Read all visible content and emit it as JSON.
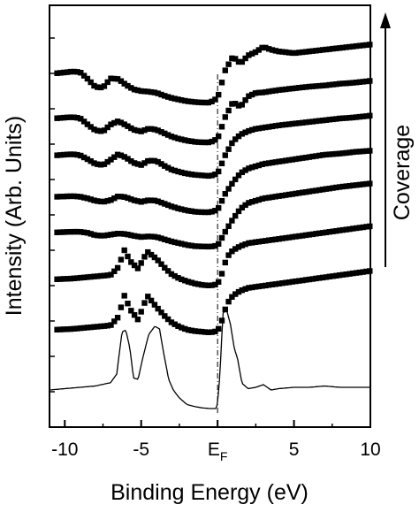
{
  "chart_data": {
    "type": "line",
    "title": "",
    "xlabel": "Binding Energy (eV)",
    "ylabel": "Intensity (Arb. Units)",
    "xlim": [
      -11,
      10
    ],
    "x_ticks": [
      -10,
      -5,
      0,
      5,
      10
    ],
    "x_tick_labels": [
      "-10",
      "-5",
      "E_F",
      "5",
      "10"
    ],
    "ef_main": "E",
    "ef_sub": "F",
    "fermi_level_x": 0,
    "y_tick_labels": [],
    "annotation": {
      "text": "Coverage",
      "arrow": "up"
    },
    "series": [
      {
        "style": "line",
        "x": [
          -11,
          -10,
          -9,
          -8,
          -7,
          -6.6,
          -6.25,
          -6.0,
          -5.75,
          -5.5,
          -5.2,
          -4.9,
          -4.5,
          -4.1,
          -3.8,
          -3.5,
          -3.2,
          -2.9,
          -2.5,
          -2.0,
          -1.5,
          -1.0,
          -0.5,
          -0.1,
          0.0,
          0.15,
          0.35,
          0.6,
          0.85,
          1.1,
          1.3,
          1.6,
          2.0,
          2.5,
          3.0,
          3.5,
          4.0,
          5.0,
          6.0,
          7.0,
          8.0,
          9.0,
          10.0
        ],
        "y": [
          1.4,
          1.5,
          1.6,
          1.7,
          1.95,
          2.6,
          5.8,
          5.9,
          4.6,
          2.3,
          2.2,
          3.8,
          5.6,
          6.2,
          6.0,
          4.0,
          2.2,
          1.4,
          0.8,
          0.3,
          0.15,
          0.05,
          0.0,
          0.0,
          0.4,
          2.5,
          7.2,
          7.4,
          6.3,
          4.5,
          3.8,
          1.9,
          1.5,
          1.6,
          1.8,
          1.4,
          1.5,
          1.6,
          1.6,
          1.7,
          1.6,
          1.6,
          1.6
        ]
      },
      {
        "style": "squares",
        "x": [
          -10.5,
          -9.5,
          -9,
          -8.5,
          -8,
          -7.5,
          -7,
          -6.5,
          -6.1,
          -5.7,
          -5.2,
          -4.6,
          -4.0,
          -3.5,
          -3.0,
          -2.5,
          -2.0,
          -1.5,
          -1.0,
          -0.5,
          0.0,
          0.3,
          0.6,
          1.0,
          1.5,
          2.0,
          3.0,
          4.0,
          5.0,
          6.0,
          7.0,
          8.0,
          9.0,
          10.0
        ],
        "y": [
          0.2,
          0.25,
          0.3,
          0.35,
          0.4,
          0.45,
          0.5,
          1.1,
          2.6,
          1.6,
          0.9,
          2.6,
          1.8,
          1.2,
          0.7,
          0.4,
          0.2,
          0.1,
          0.05,
          0.0,
          0.1,
          0.9,
          2.0,
          2.6,
          2.95,
          3.15,
          3.3,
          3.45,
          3.6,
          3.75,
          3.9,
          4.05,
          4.2,
          4.35
        ]
      },
      {
        "style": "squares",
        "x": [
          -10.5,
          -9.5,
          -9,
          -8.5,
          -8,
          -7.5,
          -7,
          -6.5,
          -6.1,
          -5.7,
          -5.2,
          -4.6,
          -4.0,
          -3.5,
          -3.0,
          -2.5,
          -2.0,
          -1.5,
          -1.0,
          -0.5,
          0.0,
          0.3,
          0.6,
          1.0,
          1.5,
          2.0,
          3.0,
          4.0,
          5.0,
          6.0,
          7.0,
          8.0,
          9.0,
          10.0
        ],
        "y": [
          0.45,
          0.5,
          0.55,
          0.6,
          0.65,
          0.7,
          0.75,
          1.3,
          2.5,
          1.7,
          1.2,
          2.4,
          1.9,
          1.3,
          0.8,
          0.5,
          0.3,
          0.15,
          0.05,
          0.0,
          0.1,
          0.9,
          2.0,
          2.5,
          2.8,
          3.0,
          3.15,
          3.3,
          3.45,
          3.6,
          3.75,
          3.9,
          4.05,
          4.2
        ]
      },
      {
        "style": "squares",
        "x": [
          -10.5,
          -9.5,
          -9,
          -8.5,
          -8,
          -7.5,
          -7,
          -6.5,
          -6,
          -5.5,
          -5,
          -4.5,
          -4,
          -3.5,
          -3,
          -2.5,
          -2,
          -1.5,
          -1,
          -0.5,
          0.0,
          0.5,
          1.0,
          1.5,
          2.0,
          3.0,
          4.0,
          5.0,
          6.0,
          7.0,
          8.0,
          9.0,
          10.0
        ],
        "y": [
          1.25,
          1.3,
          1.3,
          1.2,
          1.0,
          0.95,
          1.05,
          1.15,
          1.1,
          0.95,
          0.85,
          0.9,
          0.85,
          0.65,
          0.45,
          0.3,
          0.15,
          0.05,
          0.02,
          0.0,
          0.1,
          1.3,
          2.4,
          3.3,
          3.8,
          4.2,
          4.4,
          4.6,
          4.8,
          5.0,
          5.2,
          5.35,
          5.5
        ]
      },
      {
        "style": "squares",
        "x": [
          -10.5,
          -9.5,
          -9,
          -8.5,
          -8,
          -7.5,
          -7,
          -6.5,
          -6,
          -5.5,
          -5,
          -4.5,
          -4,
          -3.5,
          -3,
          -2.5,
          -2,
          -1.5,
          -1,
          -0.5,
          0.0,
          0.5,
          1.0,
          1.5,
          2.0,
          3.0,
          4.0,
          5.0,
          6.0,
          7.0,
          8.0,
          9.0,
          10.0
        ],
        "y": [
          1.35,
          1.4,
          1.35,
          1.2,
          1.0,
          0.9,
          1.05,
          1.4,
          1.3,
          1.05,
          0.9,
          1.05,
          1.0,
          0.75,
          0.5,
          0.3,
          0.15,
          0.05,
          0.0,
          0.0,
          0.2,
          1.6,
          2.6,
          3.4,
          3.8,
          4.2,
          4.4,
          4.6,
          4.8,
          5.0,
          5.1,
          5.25,
          5.35
        ]
      },
      {
        "style": "squares",
        "x": [
          -10.5,
          -9.5,
          -9,
          -8.5,
          -8,
          -7.5,
          -7,
          -6.5,
          -6,
          -5.5,
          -5,
          -4.5,
          -4,
          -3.5,
          -3,
          -2.5,
          -2,
          -1.5,
          -1,
          -0.5,
          0.0,
          0.5,
          1.0,
          1.5,
          2.0,
          2.5,
          3.0,
          4.0,
          5.0,
          6.0,
          7.0,
          8.0,
          9.0,
          10.0
        ],
        "y": [
          1.8,
          1.9,
          1.8,
          1.45,
          1.05,
          0.95,
          1.4,
          1.9,
          1.6,
          1.15,
          0.95,
          1.35,
          1.3,
          0.9,
          0.55,
          0.35,
          0.2,
          0.1,
          0.05,
          0.0,
          0.2,
          1.8,
          3.0,
          3.6,
          3.9,
          4.1,
          4.2,
          4.4,
          4.55,
          4.7,
          4.85,
          5.0,
          5.1,
          5.25
        ]
      },
      {
        "style": "squares",
        "x": [
          -10.5,
          -9.5,
          -9,
          -8.5,
          -8,
          -7.5,
          -7,
          -6.5,
          -6,
          -5.5,
          -5,
          -4.5,
          -4,
          -3.5,
          -3,
          -2.5,
          -2,
          -1.5,
          -1,
          -0.5,
          0.0,
          0.5,
          1.0,
          1.5,
          2.0,
          2.5,
          3.0,
          4.0,
          5.0,
          6.0,
          7.0,
          8.0,
          9.0,
          10.0
        ],
        "y": [
          2.1,
          2.2,
          2.1,
          1.55,
          1.05,
          0.95,
          1.55,
          1.85,
          1.5,
          1.1,
          0.95,
          1.2,
          1.1,
          0.8,
          0.5,
          0.3,
          0.15,
          0.05,
          0.0,
          0.0,
          0.3,
          2.2,
          3.5,
          3.1,
          4.0,
          4.3,
          4.35,
          4.55,
          4.7,
          4.85,
          4.95,
          5.1,
          5.2,
          5.35
        ]
      },
      {
        "style": "squares",
        "x": [
          -10.5,
          -9.5,
          -9,
          -8.5,
          -8,
          -7.5,
          -7,
          -6.5,
          -6,
          -5.5,
          -5,
          -4.5,
          -4,
          -3.5,
          -3,
          -2.5,
          -2,
          -1.5,
          -1,
          -0.5,
          0.0,
          0.5,
          1.0,
          1.5,
          2.0,
          2.5,
          3.0,
          3.5,
          4.0,
          5.0,
          6.0,
          7.0,
          8.0,
          9.0,
          10.0
        ],
        "y": [
          2.55,
          2.7,
          2.65,
          2.05,
          1.35,
          1.3,
          2.1,
          2.05,
          1.55,
          1.15,
          1.0,
          0.95,
          0.85,
          0.6,
          0.4,
          0.25,
          0.12,
          0.05,
          0.0,
          0.0,
          0.4,
          2.8,
          4.0,
          3.4,
          4.1,
          4.4,
          4.85,
          4.6,
          4.45,
          4.3,
          4.45,
          4.6,
          4.75,
          4.9,
          5.05
        ]
      }
    ]
  }
}
